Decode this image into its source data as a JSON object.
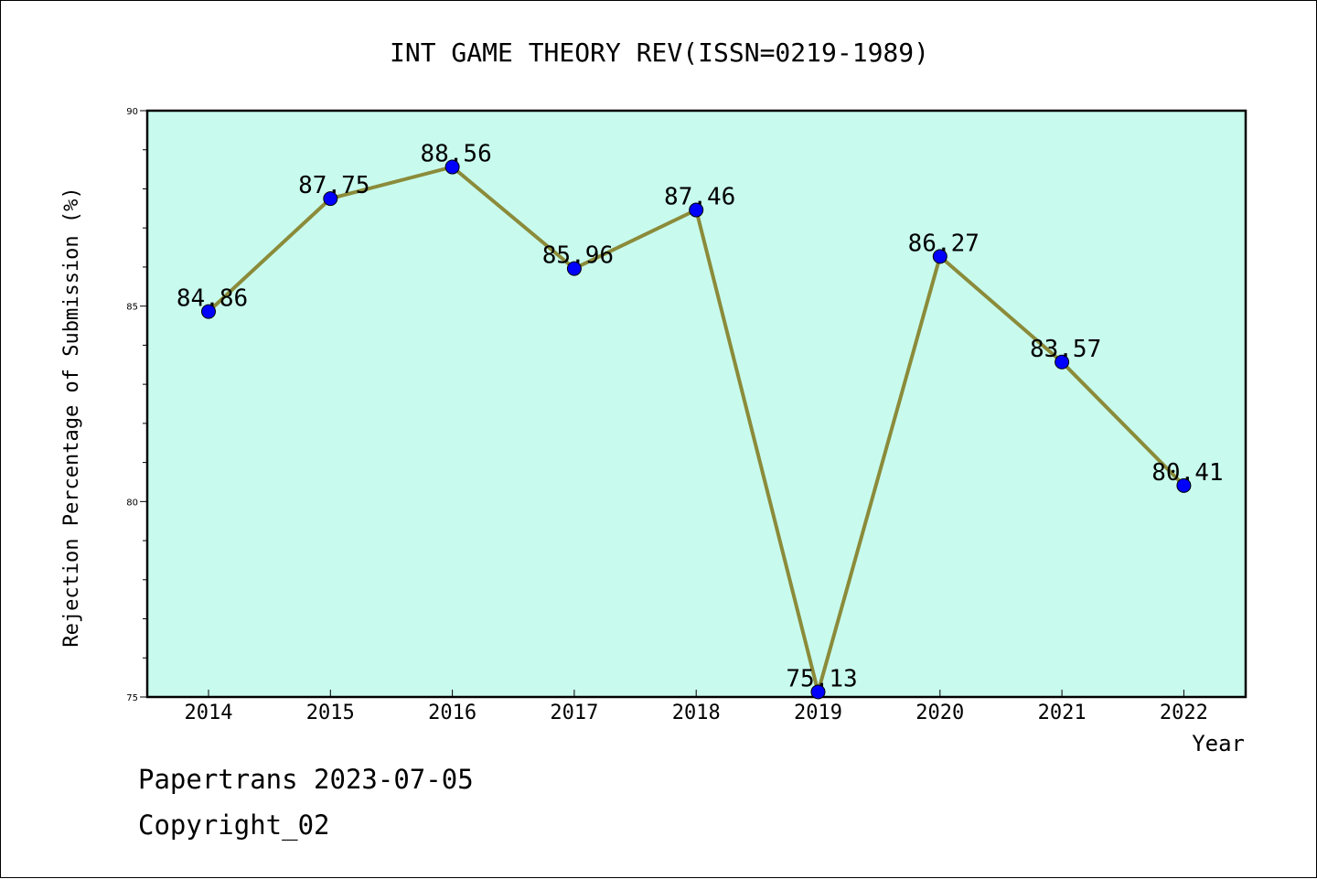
{
  "chart_data": {
    "type": "line",
    "title": "INT GAME THEORY REV(ISSN=0219-1989)",
    "xlabel": "Year",
    "ylabel": "Rejection Percentage of Submission (%)",
    "categories": [
      "2014",
      "2015",
      "2016",
      "2017",
      "2018",
      "2019",
      "2020",
      "2021",
      "2022"
    ],
    "values": [
      84.86,
      87.75,
      88.56,
      85.96,
      87.46,
      75.13,
      86.27,
      83.57,
      80.41
    ],
    "data_labels": [
      "84.86",
      "87.75",
      "88.56",
      "85.96",
      "87.46",
      "75.13",
      "86.27",
      "83.57",
      "80.41"
    ],
    "ylim": [
      75,
      90
    ],
    "yticks": [
      75,
      80,
      85,
      90
    ],
    "yticks_minor_step": 1,
    "grid": false,
    "colors": {
      "plot_background": "#c8fbee",
      "line": "#8b8b3a",
      "marker": "#0000ff"
    }
  },
  "footer": {
    "line1": "Papertrans 2023-07-05",
    "line2": "Copyright_02"
  }
}
